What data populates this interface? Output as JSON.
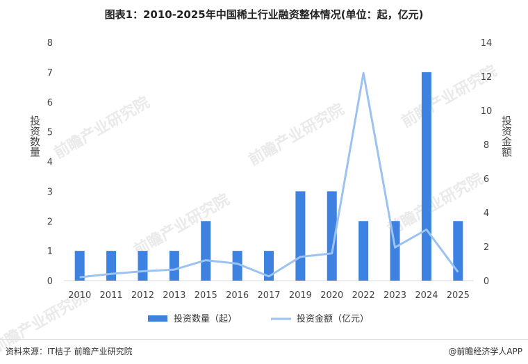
{
  "title": "图表1：2010-2025年中国稀土行业融资整体情况(单位：起，亿元)",
  "footer": {
    "source": "资料来源：IT桔子 前瞻产业研究院",
    "credit": "@前瞻经济学人APP"
  },
  "watermark_text": "前瞻产业研究院",
  "chart_data": {
    "type": "bar",
    "categories": [
      "2010",
      "2011",
      "2012",
      "2013",
      "2015",
      "2016",
      "2017",
      "2019",
      "2020",
      "2022",
      "2023",
      "2024",
      "2025"
    ],
    "series": [
      {
        "name": "投资数量（起）",
        "type": "bar",
        "axis": "left",
        "color": "#3d82e0",
        "values": [
          1,
          1,
          1,
          1,
          2,
          1,
          1,
          3,
          3,
          2,
          2,
          7,
          2
        ]
      },
      {
        "name": "投资金额（亿元）",
        "type": "line",
        "axis": "right",
        "color": "#9cc2f2",
        "values": [
          0.2,
          0.4,
          0.55,
          0.65,
          1.2,
          1.0,
          0.25,
          1.4,
          1.6,
          12.2,
          1.95,
          3.0,
          0.5
        ]
      }
    ],
    "ylabel": "投资数量",
    "y2label": "投资金额",
    "ylim": [
      0,
      8
    ],
    "y2lim": [
      0,
      14
    ],
    "yticks": [
      "0",
      "1",
      "2",
      "3",
      "4",
      "5",
      "6",
      "7",
      "8"
    ],
    "y2ticks": [
      "0",
      "2",
      "4",
      "6",
      "8",
      "10",
      "12",
      "14"
    ],
    "grid": false,
    "legend_position": "bottom"
  }
}
